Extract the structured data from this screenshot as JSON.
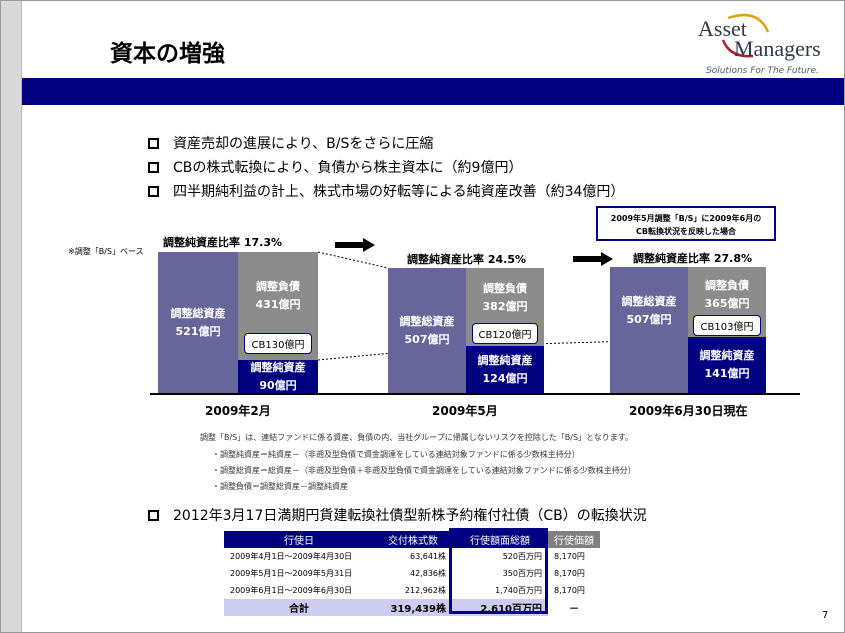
{
  "title": "資本の増強",
  "logo": {
    "line1": "Asset",
    "line2": "Managers",
    "tagline": "Solutions For The Future."
  },
  "bullets": [
    "資産売却の進展により、B/Sをさらに圧縮",
    "CBの株式転換により、負債から株主資本に（約9億円）",
    "四半期純利益の計上、株式市場の好転等による純資産改善（約34億円）"
  ],
  "basis_note": "※調整「B/S」ベース",
  "callout": [
    "2009年5月調整「B/S」に2009年6月の",
    "CB転換状況を反映した場合"
  ],
  "chart_data": {
    "type": "bar",
    "categories": [
      "2009年2月",
      "2009年5月",
      "2009年6月30日現在"
    ],
    "periods": [
      {
        "label": "2009年2月",
        "ratio": "調整純資産比率 17.3%",
        "assets_label": "調整総資産",
        "assets": "521億円",
        "liab_label": "調整負債",
        "liab": "431億円",
        "cb": "CB130億円",
        "net_label": "調整純資産",
        "net": "90億円"
      },
      {
        "label": "2009年5月",
        "ratio": "調整純資産比率 24.5%",
        "assets_label": "調整総資産",
        "assets": "507億円",
        "liab_label": "調整負債",
        "liab": "382億円",
        "cb": "CB120億円",
        "net_label": "調整純資産",
        "net": "124億円"
      },
      {
        "label": "2009年6月30日現在",
        "ratio": "調整純資産比率 27.8%",
        "assets_label": "調整総資産",
        "assets": "507億円",
        "liab_label": "調整負債",
        "liab": "365億円",
        "cb": "CB103億円",
        "net_label": "調整純資産",
        "net": "141億円"
      }
    ]
  },
  "notes": [
    "調整「B/S」は、連結ファンドに係る資産、負債の内、当社グループに帰属しないリスクを控除した「B/S」となります。",
    "・調整純資産＝純資産－（非遡及型負債で資金調達をしている連結対象ファンドに係る少数株主持分）",
    "・調整総資産＝総資産－（非遡及型負債＋非遡及型負債で資金調達をしている連結対象ファンドに係る少数株主持分）",
    "・調整負債＝調整総資産－調整純資産"
  ],
  "cb_heading": "2012年3月17日満期円貨建転換社債型新株予約権付社債（CB）の転換状況",
  "table": {
    "headers": [
      "行使日",
      "交付株式数",
      "行使額面総額",
      "行使価額"
    ],
    "rows": [
      [
        "2009年4月1日～2009年4月30日",
        "63,641株",
        "520百万円",
        "8,170円"
      ],
      [
        "2009年5月1日～2009年5月31日",
        "42,836株",
        "350百万円",
        "8,170円"
      ],
      [
        "2009年6月1日～2009年6月30日",
        "212,962株",
        "1,740百万円",
        "8,170円"
      ]
    ],
    "total": [
      "合計",
      "319,439株",
      "2,610百万円",
      "－"
    ]
  },
  "page_number": "7",
  "colors": {
    "navy": "#000080",
    "assets": "#66669a",
    "liabilities": "#8c8c8c"
  }
}
